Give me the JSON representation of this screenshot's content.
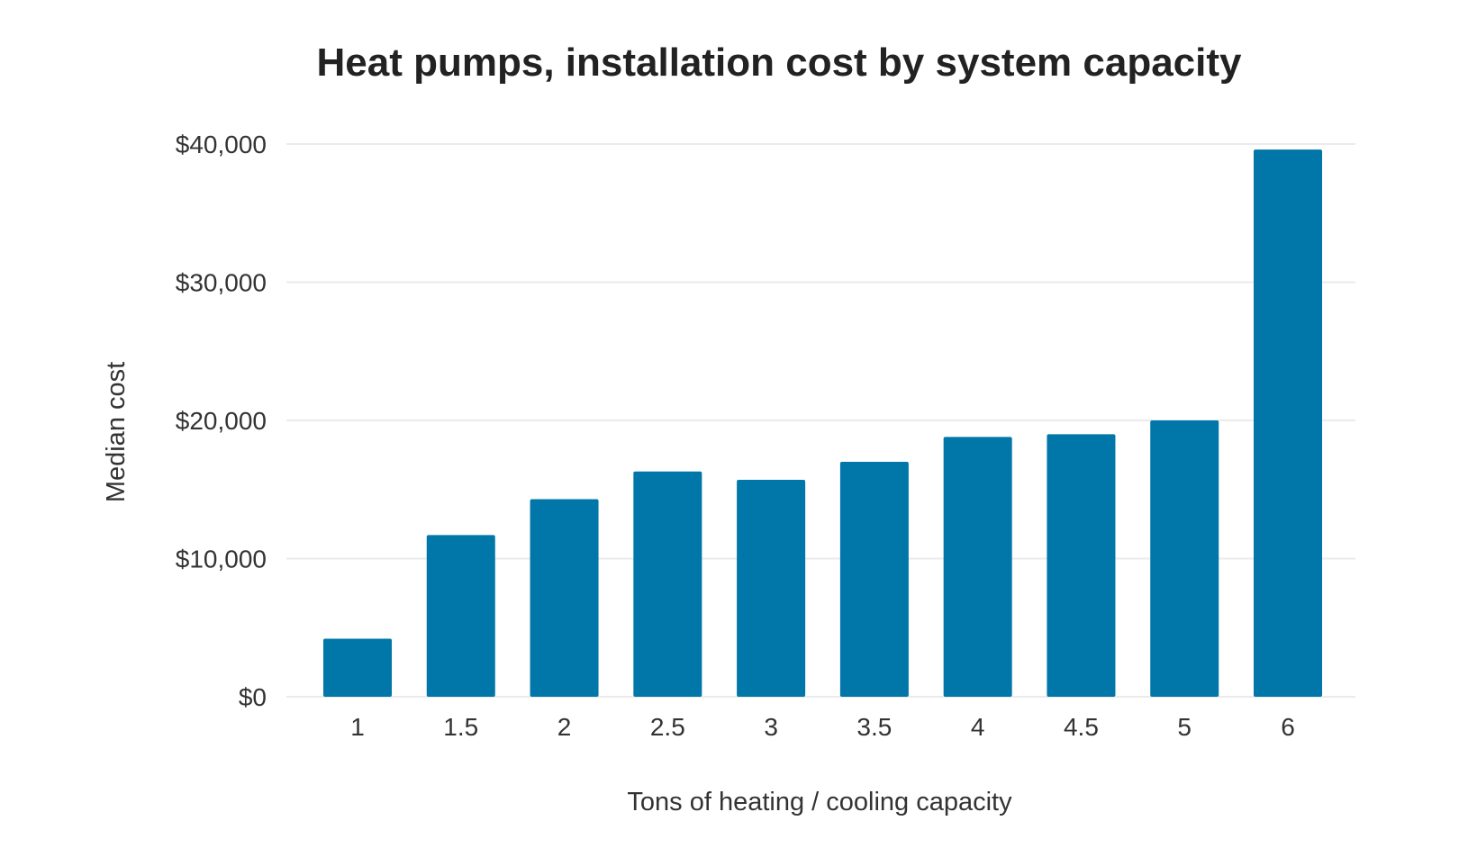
{
  "chart_data": {
    "type": "bar",
    "title": "Heat pumps, installation cost by system capacity",
    "xlabel": "Tons of heating / cooling capacity",
    "ylabel": "Median cost",
    "categories": [
      "1",
      "1.5",
      "2",
      "2.5",
      "3",
      "3.5",
      "4",
      "4.5",
      "5",
      "6"
    ],
    "series": [
      {
        "values": [
          4200,
          11700,
          14300,
          16300,
          15700,
          17000,
          18800,
          19000,
          20000,
          39600
        ]
      }
    ],
    "ylim": [
      0,
      40000
    ],
    "yticks": [
      0,
      10000,
      20000,
      30000,
      40000
    ],
    "ytick_labels": [
      "$0",
      "$10,000",
      "$20,000",
      "$30,000",
      "$40,000"
    ],
    "grid": true,
    "legend": "none",
    "bar_color": "#0077a8"
  }
}
